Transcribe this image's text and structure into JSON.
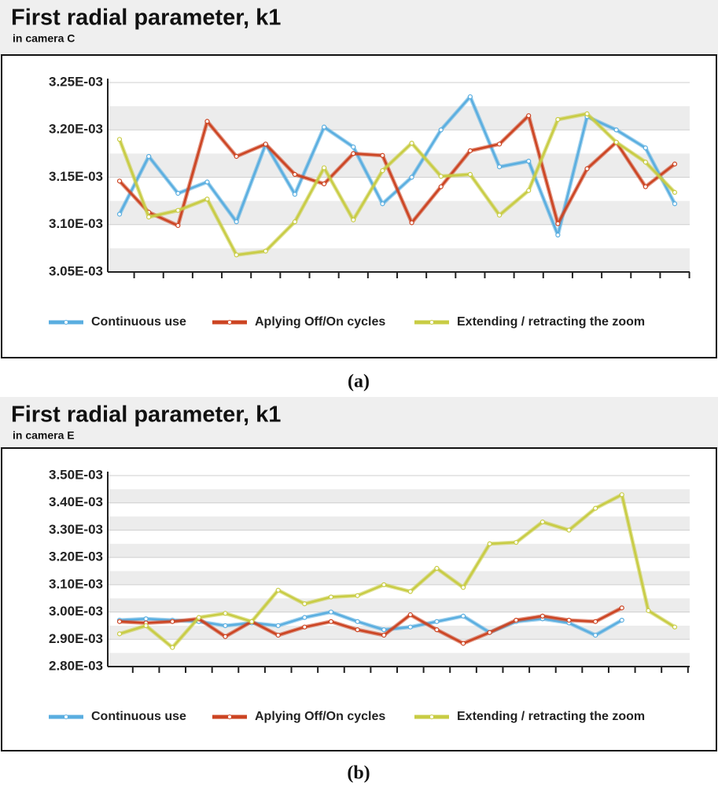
{
  "chart_data": [
    {
      "type": "line",
      "title": "First radial parameter, k1",
      "subtitle": "in camera C",
      "caption": "(a)",
      "categories": [
        null,
        null,
        null,
        null,
        null,
        null,
        null,
        null,
        null,
        null,
        null,
        null,
        null,
        null,
        null,
        null,
        null,
        null,
        null,
        null
      ],
      "ylim": [
        0.00305,
        0.00325
      ],
      "yticks": [
        {
          "value": 0.00305,
          "label": "3.05E-03"
        },
        {
          "value": 0.0031,
          "label": "3.10E-03"
        },
        {
          "value": 0.00315,
          "label": "3.15E-03"
        },
        {
          "value": 0.0032,
          "label": "3.20E-03"
        },
        {
          "value": 0.00325,
          "label": "3.25E-03"
        }
      ],
      "grid": true,
      "legend": "bottom",
      "series": [
        {
          "name": "Continuous use",
          "color": "#5aaee0",
          "values": [
            0.003111,
            0.003172,
            0.003133,
            0.003145,
            0.003103,
            0.003185,
            0.003132,
            0.003203,
            0.003182,
            0.003122,
            0.00315,
            0.0032,
            0.003235,
            0.003161,
            0.003167,
            0.003089,
            0.003214,
            0.0032,
            0.003181,
            0.003122
          ]
        },
        {
          "name": "Aplying Off/On cycles",
          "color": "#cc4422",
          "values": [
            0.003146,
            0.003113,
            0.003099,
            0.003209,
            0.003172,
            0.003185,
            0.003153,
            0.003143,
            0.003175,
            0.003173,
            0.003102,
            0.00314,
            0.003178,
            0.003185,
            0.003215,
            0.003101,
            0.003159,
            0.003187,
            0.00314,
            0.003164
          ]
        },
        {
          "name": "Extending / retracting the zoom",
          "color": "#c8cc44",
          "values": [
            0.00319,
            0.003108,
            0.003115,
            0.003127,
            0.003068,
            0.003072,
            0.003103,
            0.00316,
            0.003105,
            0.003157,
            0.003186,
            0.003151,
            0.003153,
            0.00311,
            0.003136,
            0.003211,
            0.003217,
            0.003187,
            0.003166,
            0.003134
          ]
        }
      ]
    },
    {
      "type": "line",
      "title": "First radial parameter, k1",
      "subtitle": "in camera E",
      "caption": "(b)",
      "categories": [
        null,
        null,
        null,
        null,
        null,
        null,
        null,
        null,
        null,
        null,
        null,
        null,
        null,
        null,
        null,
        null,
        null,
        null,
        null,
        null,
        null,
        null
      ],
      "ylim": [
        0.0028,
        0.0035
      ],
      "yticks": [
        {
          "value": 0.0028,
          "label": "2.80E-03"
        },
        {
          "value": 0.0029,
          "label": "2.90E-03"
        },
        {
          "value": 0.003,
          "label": "3.00E-03"
        },
        {
          "value": 0.0031,
          "label": "3.10E-03"
        },
        {
          "value": 0.0032,
          "label": "3.20E-03"
        },
        {
          "value": 0.0033,
          "label": "3.30E-03"
        },
        {
          "value": 0.0034,
          "label": "3.40E-03"
        },
        {
          "value": 0.0035,
          "label": "3.50E-03"
        }
      ],
      "grid": true,
      "legend": "bottom",
      "series": [
        {
          "name": "Continuous use",
          "color": "#5aaee0",
          "values": [
            0.00297,
            0.002975,
            0.00297,
            0.002965,
            0.00295,
            0.00296,
            0.00295,
            0.00298,
            0.003,
            0.002965,
            0.002935,
            0.002945,
            0.002965,
            0.002985,
            0.002925,
            0.002965,
            0.002975,
            0.00296,
            0.002915,
            0.00297,
            null,
            null
          ]
        },
        {
          "name": "Aplying Off/On cycles",
          "color": "#cc4422",
          "values": [
            0.002965,
            0.00296,
            0.002965,
            0.002975,
            0.00291,
            0.002965,
            0.002915,
            0.002945,
            0.002965,
            0.002935,
            0.002915,
            0.00299,
            0.002935,
            0.002885,
            0.002925,
            0.00297,
            0.002985,
            0.00297,
            0.002965,
            0.003015,
            null,
            null
          ]
        },
        {
          "name": "Extending / retracting the zoom",
          "color": "#c8cc44",
          "values": [
            0.00292,
            0.00295,
            0.00287,
            0.00298,
            0.002995,
            0.002965,
            0.00308,
            0.00303,
            0.003055,
            0.00306,
            0.0031,
            0.003075,
            0.00316,
            0.00309,
            0.00325,
            0.003255,
            0.00333,
            0.0033,
            0.00338,
            0.00343,
            0.003005,
            0.002945
          ]
        }
      ]
    }
  ]
}
